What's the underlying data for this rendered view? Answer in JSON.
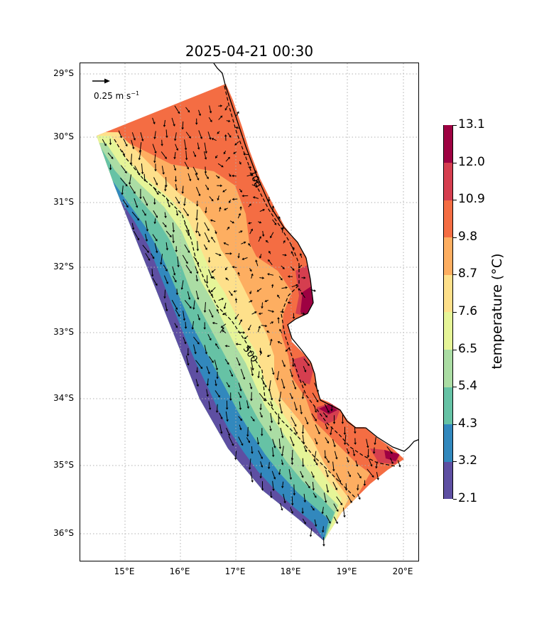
{
  "title": "2025-04-21 00:30",
  "quiver_key": {
    "label": "0.25 m s",
    "unit_exponent": "−1"
  },
  "lat_labels": [
    "29°S",
    "30°S",
    "31°S",
    "32°S",
    "33°S",
    "34°S",
    "35°S",
    "36°S"
  ],
  "lon_labels": [
    "15°E",
    "16°E",
    "17°E",
    "18°E",
    "19°E",
    "20°E"
  ],
  "contour_labels": [
    "100",
    "500"
  ],
  "colorbar": {
    "label": "temperature (°C)",
    "ticks": [
      "13.1",
      "12.0",
      "10.9",
      "9.8",
      "8.7",
      "7.6",
      "6.5",
      "5.4",
      "4.3",
      "3.2",
      "2.1"
    ],
    "colors": [
      "#5e4fa2",
      "#3288bd",
      "#66c2a5",
      "#abdda4",
      "#e6f598",
      "#fee08b",
      "#fdae61",
      "#f46d43",
      "#d53e4f",
      "#9e0142"
    ]
  },
  "chart_data": {
    "type": "map",
    "title": "2025-04-21 00:30",
    "variable": "temperature (°C)",
    "colorbar_levels": [
      2.1,
      3.2,
      4.3,
      5.4,
      6.5,
      7.6,
      8.7,
      9.8,
      10.9,
      12.0,
      13.1
    ],
    "lon_ticks": [
      15,
      16,
      17,
      18,
      19,
      20
    ],
    "lat_ticks": [
      -29,
      -30,
      -31,
      -32,
      -33,
      -34,
      -35,
      -36
    ],
    "lon_range": [
      14.2,
      20.3
    ],
    "lat_range": [
      -36.4,
      -28.85
    ],
    "bathymetry_contours": [
      100,
      500
    ],
    "quiver_reference": "0.25 m s−1"
  }
}
